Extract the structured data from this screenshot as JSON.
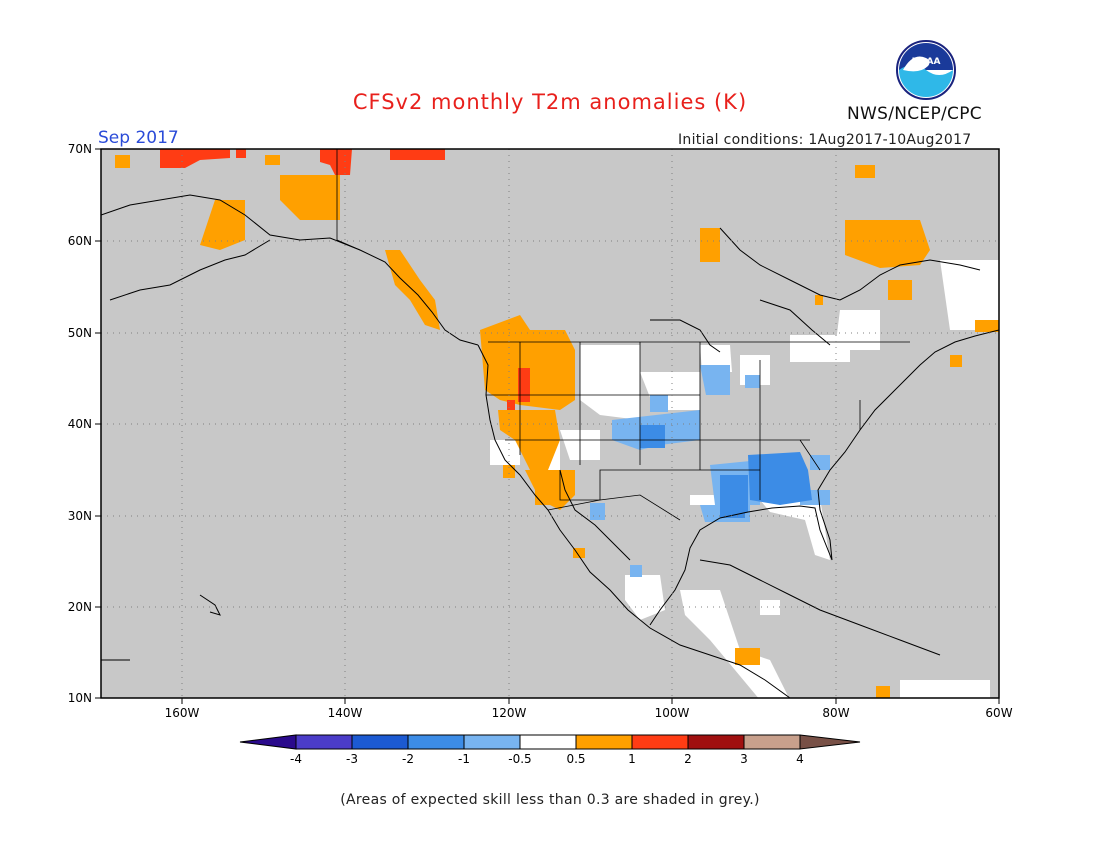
{
  "title": "CFSv2 monthly T2m anomalies (K)",
  "valid_month": "Sep 2017",
  "initial_conditions": "Initial conditions: 1Aug2017-10Aug2017",
  "agency": "NWS/NCEP/CPC",
  "logo_text": "NOAA",
  "footnote": "(Areas of expected skill less than 0.3 are shaded in grey.)",
  "map": {
    "lat_labels": [
      "70N",
      "60N",
      "50N",
      "40N",
      "30N",
      "20N",
      "10N"
    ],
    "lon_labels": [
      "160W",
      "140W",
      "120W",
      "100W",
      "80W",
      "60W"
    ],
    "lat_range": [
      10,
      70
    ],
    "lon_range": [
      -170,
      -60
    ],
    "low_skill_color": "#c8c8c8",
    "land_outline_color": "#000000"
  },
  "colorbar": {
    "labels": [
      "-4",
      "-3",
      "-2",
      "-1",
      "-0.5",
      "0.5",
      "1",
      "2",
      "3",
      "4"
    ],
    "colors": [
      "#2a0a8c",
      "#4b3cc8",
      "#1c5ad2",
      "#3c8ce6",
      "#78b4f0",
      "#ffffff",
      "#ffa000",
      "#ff3c14",
      "#a01010",
      "#c8a08c",
      "#785046"
    ]
  }
}
